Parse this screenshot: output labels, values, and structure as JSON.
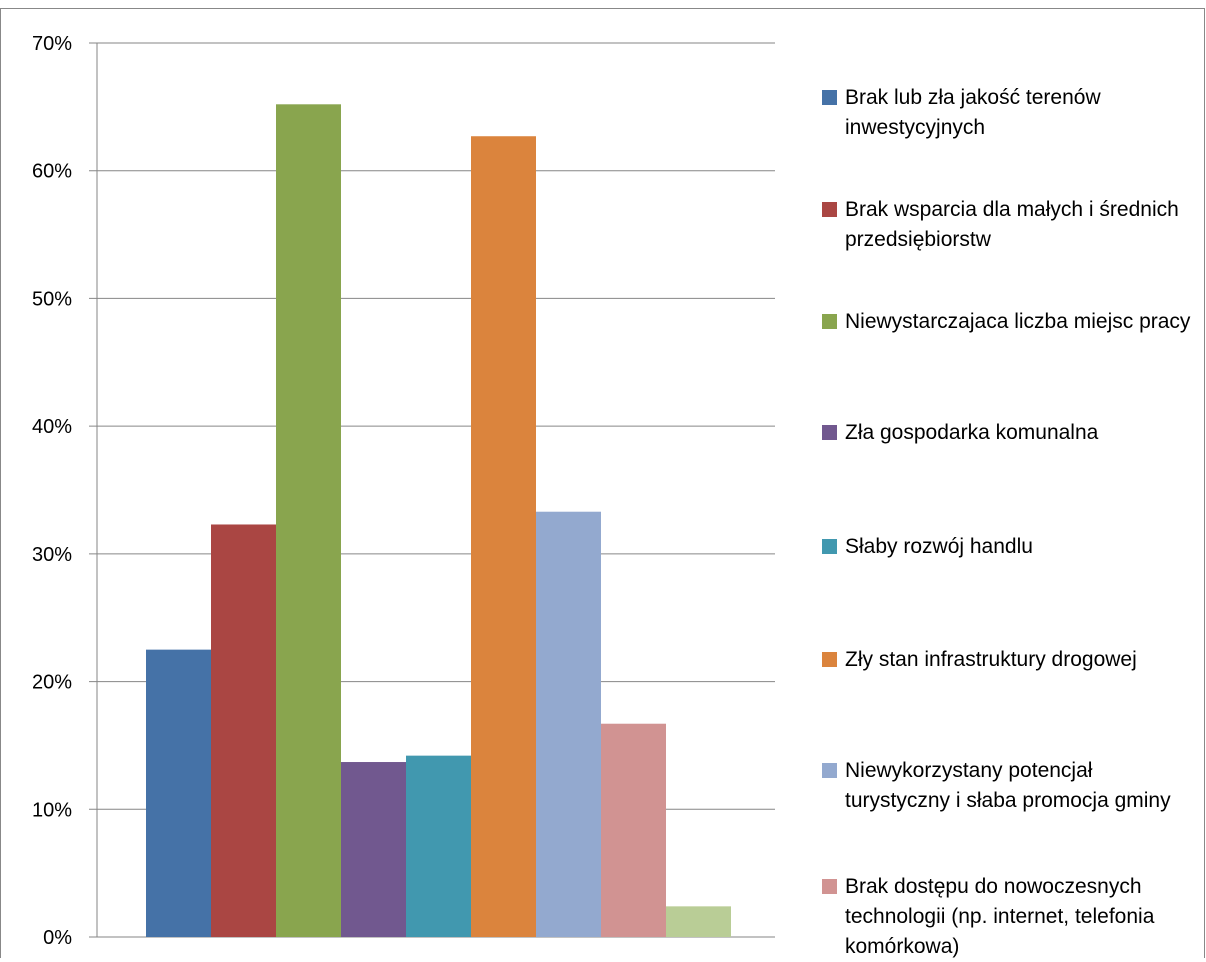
{
  "chart_data": {
    "type": "bar",
    "y_ticks": [
      "0%",
      "10%",
      "20%",
      "30%",
      "40%",
      "50%",
      "60%",
      "70%"
    ],
    "ylim": [
      0,
      70
    ],
    "grid": true,
    "legend_position": "right",
    "series": [
      {
        "name": "Brak lub zła jakość terenów inwestycyjnych",
        "value": 22.5,
        "color": "#4572A7"
      },
      {
        "name": "Brak wsparcia dla małych i średnich przedsiębiorstw",
        "value": 32.3,
        "color": "#AA4643"
      },
      {
        "name": "Niewystarczajaca liczba miejsc pracy",
        "value": 65.2,
        "color": "#89A54E"
      },
      {
        "name": "Zła gospodarka komunalna",
        "value": 13.7,
        "color": "#71588F"
      },
      {
        "name": "Słaby rozwój handlu",
        "value": 14.2,
        "color": "#4198AF"
      },
      {
        "name": "Zły stan infrastruktury drogowej",
        "value": 62.7,
        "color": "#DB843D"
      },
      {
        "name": "Niewykorzystany potencjał turystyczny i słaba promocja gminy",
        "value": 33.3,
        "color": "#93A9CF"
      },
      {
        "name": "Brak dostępu do nowoczesnych technologii (np. internet, telefonia komórkowa)",
        "value": 16.7,
        "color": "#D19392"
      },
      {
        "name": "",
        "value": 2.4,
        "color": "#B9CD96"
      }
    ]
  }
}
